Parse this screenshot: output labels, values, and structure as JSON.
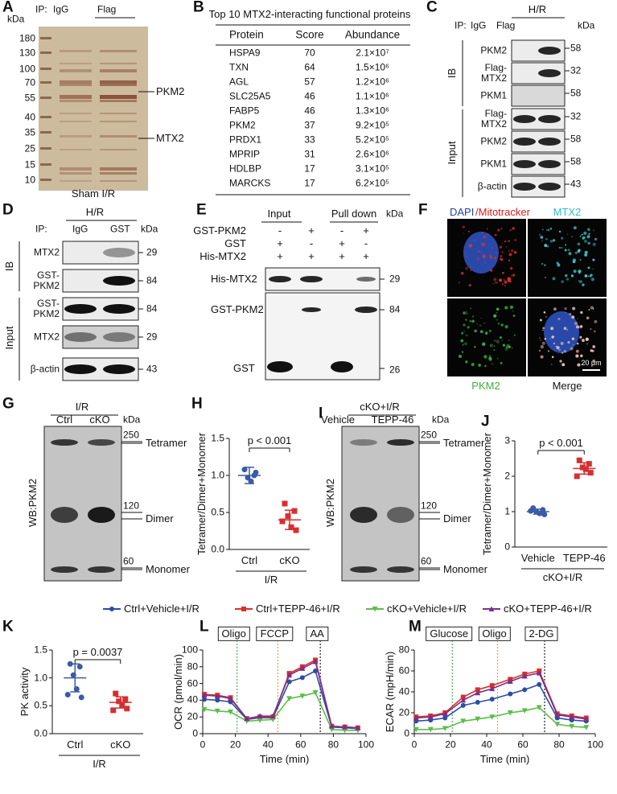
{
  "panel_labels": [
    "A",
    "B",
    "C",
    "D",
    "E",
    "F",
    "G",
    "H",
    "I",
    "J",
    "K",
    "L",
    "M"
  ],
  "a": {
    "kda": "kDa",
    "ip": "IP:",
    "lanes": [
      "IgG",
      "Flag"
    ],
    "markers": [
      "180",
      "130",
      "100",
      "70",
      "55",
      "40",
      "35",
      "25",
      "15",
      "10"
    ],
    "bands": [
      "PKM2",
      "MTX2"
    ],
    "caption": "Sham I/R"
  },
  "b": {
    "title": "Top 10 MTX2-interacting functional proteins",
    "header": [
      "Protein",
      "Score",
      "Abundance"
    ],
    "rows": [
      [
        "HSPA9",
        "70",
        "2.1×10⁷"
      ],
      [
        "TXN",
        "64",
        "1.5×10⁶"
      ],
      [
        "AGL",
        "57",
        "1.2×10⁶"
      ],
      [
        "SLC25A5",
        "46",
        "1.1×10⁶"
      ],
      [
        "FABP5",
        "46",
        "1.3×10⁶"
      ],
      [
        "PKM2",
        "37",
        "9.2×10⁵"
      ],
      [
        "PRDX1",
        "33",
        "5.2×10⁵"
      ],
      [
        "MPRIP",
        "31",
        "2.6×10⁶"
      ],
      [
        "HDLBP",
        "17",
        "3.1×10⁵"
      ],
      [
        "MARCKS",
        "17",
        "6.2×10⁵"
      ]
    ]
  },
  "c": {
    "condition": "H/R",
    "ip": "IP:",
    "lanes": [
      "IgG",
      "Flag"
    ],
    "kda": "kDa",
    "groups": [
      "IB",
      "Input"
    ],
    "rows": [
      {
        "label": "PKM2",
        "kda": "58"
      },
      {
        "label": "Flag-MTX2",
        "kda": "32"
      },
      {
        "label": "PKM1",
        "kda": "58"
      },
      {
        "label": "Flag-MTX2",
        "kda": "32"
      },
      {
        "label": "PKM2",
        "kda": "58"
      },
      {
        "label": "PKM1",
        "kda": "58"
      },
      {
        "label": "β-actin",
        "kda": "43"
      }
    ]
  },
  "d": {
    "condition": "H/R",
    "ip": "IP:",
    "lanes": [
      "IgG",
      "GST"
    ],
    "kda": "kDa",
    "groups": [
      "IB",
      "Input"
    ],
    "rows": [
      {
        "label": "MTX2",
        "kda": "29"
      },
      {
        "label": "GST-PKM2",
        "kda": "84"
      },
      {
        "label": "GST-PKM2",
        "kda": "84"
      },
      {
        "label": "MTX2",
        "kda": "29"
      },
      {
        "label": "β-actin",
        "kda": "43"
      }
    ]
  },
  "e": {
    "groups": [
      "Input",
      "Pull down"
    ],
    "kda": "kDa",
    "conditions": [
      {
        "label": "GST-PKM2",
        "signs": [
          "-",
          "+",
          "-",
          "+"
        ]
      },
      {
        "label": "GST",
        "signs": [
          "+",
          "-",
          "+",
          "-"
        ]
      },
      {
        "label": "His-MTX2",
        "signs": [
          "+",
          "+",
          "+",
          "+"
        ]
      }
    ],
    "bands": [
      {
        "label": "His-MTX2",
        "kda": "29"
      },
      {
        "label": "GST-PKM2",
        "kda": "84"
      },
      {
        "label": "GST",
        "kda": "26"
      }
    ]
  },
  "f": {
    "dapi": "DAPI",
    "mito": "/Mitotracker",
    "mtx2": "MTX2",
    "pkm2": "PKM2",
    "merge": "Merge",
    "scale": "20 μm"
  },
  "g": {
    "condition": "I/R",
    "lanes": [
      "Ctrl",
      "cKO"
    ],
    "kda": "kDa",
    "ylabel": "WB:PKM2",
    "markers": [
      "250",
      "120",
      "60"
    ],
    "forms": [
      "Tetramer",
      "Dimer",
      "Monomer"
    ]
  },
  "i": {
    "condition": "cKO+I/R",
    "lanes": [
      "Vehicle",
      "TEPP-46"
    ],
    "kda": "kDa",
    "ylabel": "WB:PKM2",
    "markers": [
      "250",
      "120",
      "60"
    ],
    "forms": [
      "Tetramer",
      "Dimer",
      "Monomer"
    ]
  },
  "legend": [
    {
      "name": "Ctrl+Vehicle+I/R",
      "color": "#2b4ea2"
    },
    {
      "name": "Ctrl+TEPP-46+I/R",
      "color": "#d7302a"
    },
    {
      "name": "cKO+Vehicle+I/R",
      "color": "#5bbd4a"
    },
    {
      "name": "cKO+TEPP-46+I/R",
      "color": "#7b2f8e"
    }
  ],
  "chart_data": [
    {
      "type": "dot",
      "categories": [
        "Ctrl",
        "cKO"
      ],
      "colors": [
        "#3b5ba5",
        "#d62f2f"
      ],
      "values": [
        [
          1.08,
          1.0,
          0.97,
          0.92,
          1.04
        ],
        [
          0.62,
          0.52,
          0.45,
          0.3,
          0.26,
          0.38
        ]
      ],
      "means": [
        1.0,
        0.4
      ],
      "sd": [
        0.11,
        0.13
      ],
      "ylim": [
        0,
        1.5
      ],
      "yticks": [
        {
          "value": 0,
          "label": "0.0"
        },
        {
          "value": 0.5,
          "label": "0.5"
        },
        {
          "value": 1,
          "label": "1.0"
        },
        {
          "value": 1.5,
          "label": "1.5"
        }
      ],
      "ylabel": "Tetramer/Dimer+Monomer",
      "group": "I/R",
      "annotation": "p < 0.001"
    },
    {
      "type": "dot",
      "categories": [
        "Vehicle",
        "TEPP-46"
      ],
      "colors": [
        "#3b5ba5",
        "#d62f2f"
      ],
      "values": [
        [
          1.1,
          1.05,
          1.0,
          0.95,
          0.92,
          1.02
        ],
        [
          2.45,
          2.35,
          2.25,
          2.2,
          2.1,
          2.0
        ]
      ],
      "means": [
        1.0,
        2.22
      ],
      "sd": [
        0.07,
        0.16
      ],
      "ylim": [
        0,
        3
      ],
      "yticks": [
        0,
        1,
        2,
        3
      ],
      "ylabel": "Tetramer/Dimer+Monomer",
      "group": "cKO+I/R",
      "annotation": "p < 0.001"
    },
    {
      "type": "dot",
      "categories": [
        "Ctrl",
        "cKO"
      ],
      "colors": [
        "#3b5ba5",
        "#d62f2f"
      ],
      "values": [
        [
          1.25,
          1.2,
          1.05,
          0.8,
          0.65,
          0.7
        ],
        [
          0.72,
          0.62,
          0.58,
          0.52,
          0.45,
          0.42
        ]
      ],
      "means": [
        1.0,
        0.56
      ],
      "sd": [
        0.25,
        0.1
      ],
      "ylim": [
        0,
        1.5
      ],
      "yticks": [
        {
          "value": 0,
          "label": "0.0"
        },
        {
          "value": 0.5,
          "label": "0.5"
        },
        {
          "value": 1,
          "label": "1.0"
        },
        {
          "value": 1.5,
          "label": "1.5"
        }
      ],
      "ylabel": "PK activity",
      "group": "I/R",
      "annotation": "p = 0.0037"
    },
    {
      "type": "line",
      "x": [
        1,
        9,
        17,
        27,
        35,
        43,
        53,
        61,
        69,
        79,
        87,
        95
      ],
      "series": [
        {
          "values": [
            41,
            40,
            38,
            17,
            19,
            19,
            62,
            67,
            75,
            8,
            7,
            6
          ]
        },
        {
          "values": [
            47,
            46,
            43,
            18,
            20,
            20,
            72,
            80,
            88,
            9,
            8,
            7
          ]
        },
        {
          "values": [
            29,
            27,
            26,
            15,
            16,
            17,
            42,
            45,
            49,
            5,
            4,
            4
          ]
        },
        {
          "values": [
            46,
            45,
            42,
            18,
            21,
            21,
            70,
            78,
            86,
            9,
            8,
            7
          ]
        }
      ],
      "xlim": [
        0,
        100
      ],
      "xticks": [
        0,
        20,
        40,
        60,
        80,
        100
      ],
      "ylim": [
        0,
        100
      ],
      "yticks": [
        0,
        20,
        40,
        60,
        80,
        100
      ],
      "xlabel": "Time (min)",
      "ylabel": "OCR (pmol/min)",
      "injections": [
        {
          "label": "Oligo",
          "x": 21,
          "color": "#4caf50"
        },
        {
          "label": "FCCP",
          "x": 46,
          "color": "#f39c32"
        },
        {
          "label": "AA",
          "x": 72,
          "color": "#222222"
        }
      ]
    },
    {
      "type": "line",
      "x": [
        1,
        9,
        17,
        27,
        35,
        43,
        53,
        61,
        69,
        79,
        87,
        95
      ],
      "series": [
        {
          "values": [
            12,
            13,
            15,
            27,
            30,
            33,
            38,
            42,
            47,
            15,
            13,
            12
          ]
        },
        {
          "values": [
            16,
            17,
            20,
            35,
            42,
            46,
            52,
            57,
            60,
            19,
            17,
            15
          ]
        },
        {
          "values": [
            4,
            4,
            5,
            12,
            14,
            16,
            20,
            22,
            25,
            9,
            7,
            6
          ]
        },
        {
          "values": [
            15,
            16,
            19,
            32,
            39,
            43,
            50,
            55,
            58,
            18,
            16,
            14
          ]
        }
      ],
      "xlim": [
        0,
        100
      ],
      "xticks": [
        0,
        20,
        40,
        60,
        80,
        100
      ],
      "ylim": [
        0,
        80
      ],
      "yticks": [
        0,
        20,
        40,
        60,
        80
      ],
      "xlabel": "Time (min)",
      "ylabel": "ECAR (mpH/min)",
      "injections": [
        {
          "label": "Glucose",
          "x": 21,
          "color": "#4caf50"
        },
        {
          "label": "Oligo",
          "x": 46,
          "color": "#f39c32"
        },
        {
          "label": "2-DG",
          "x": 72,
          "color": "#222222"
        }
      ]
    }
  ]
}
